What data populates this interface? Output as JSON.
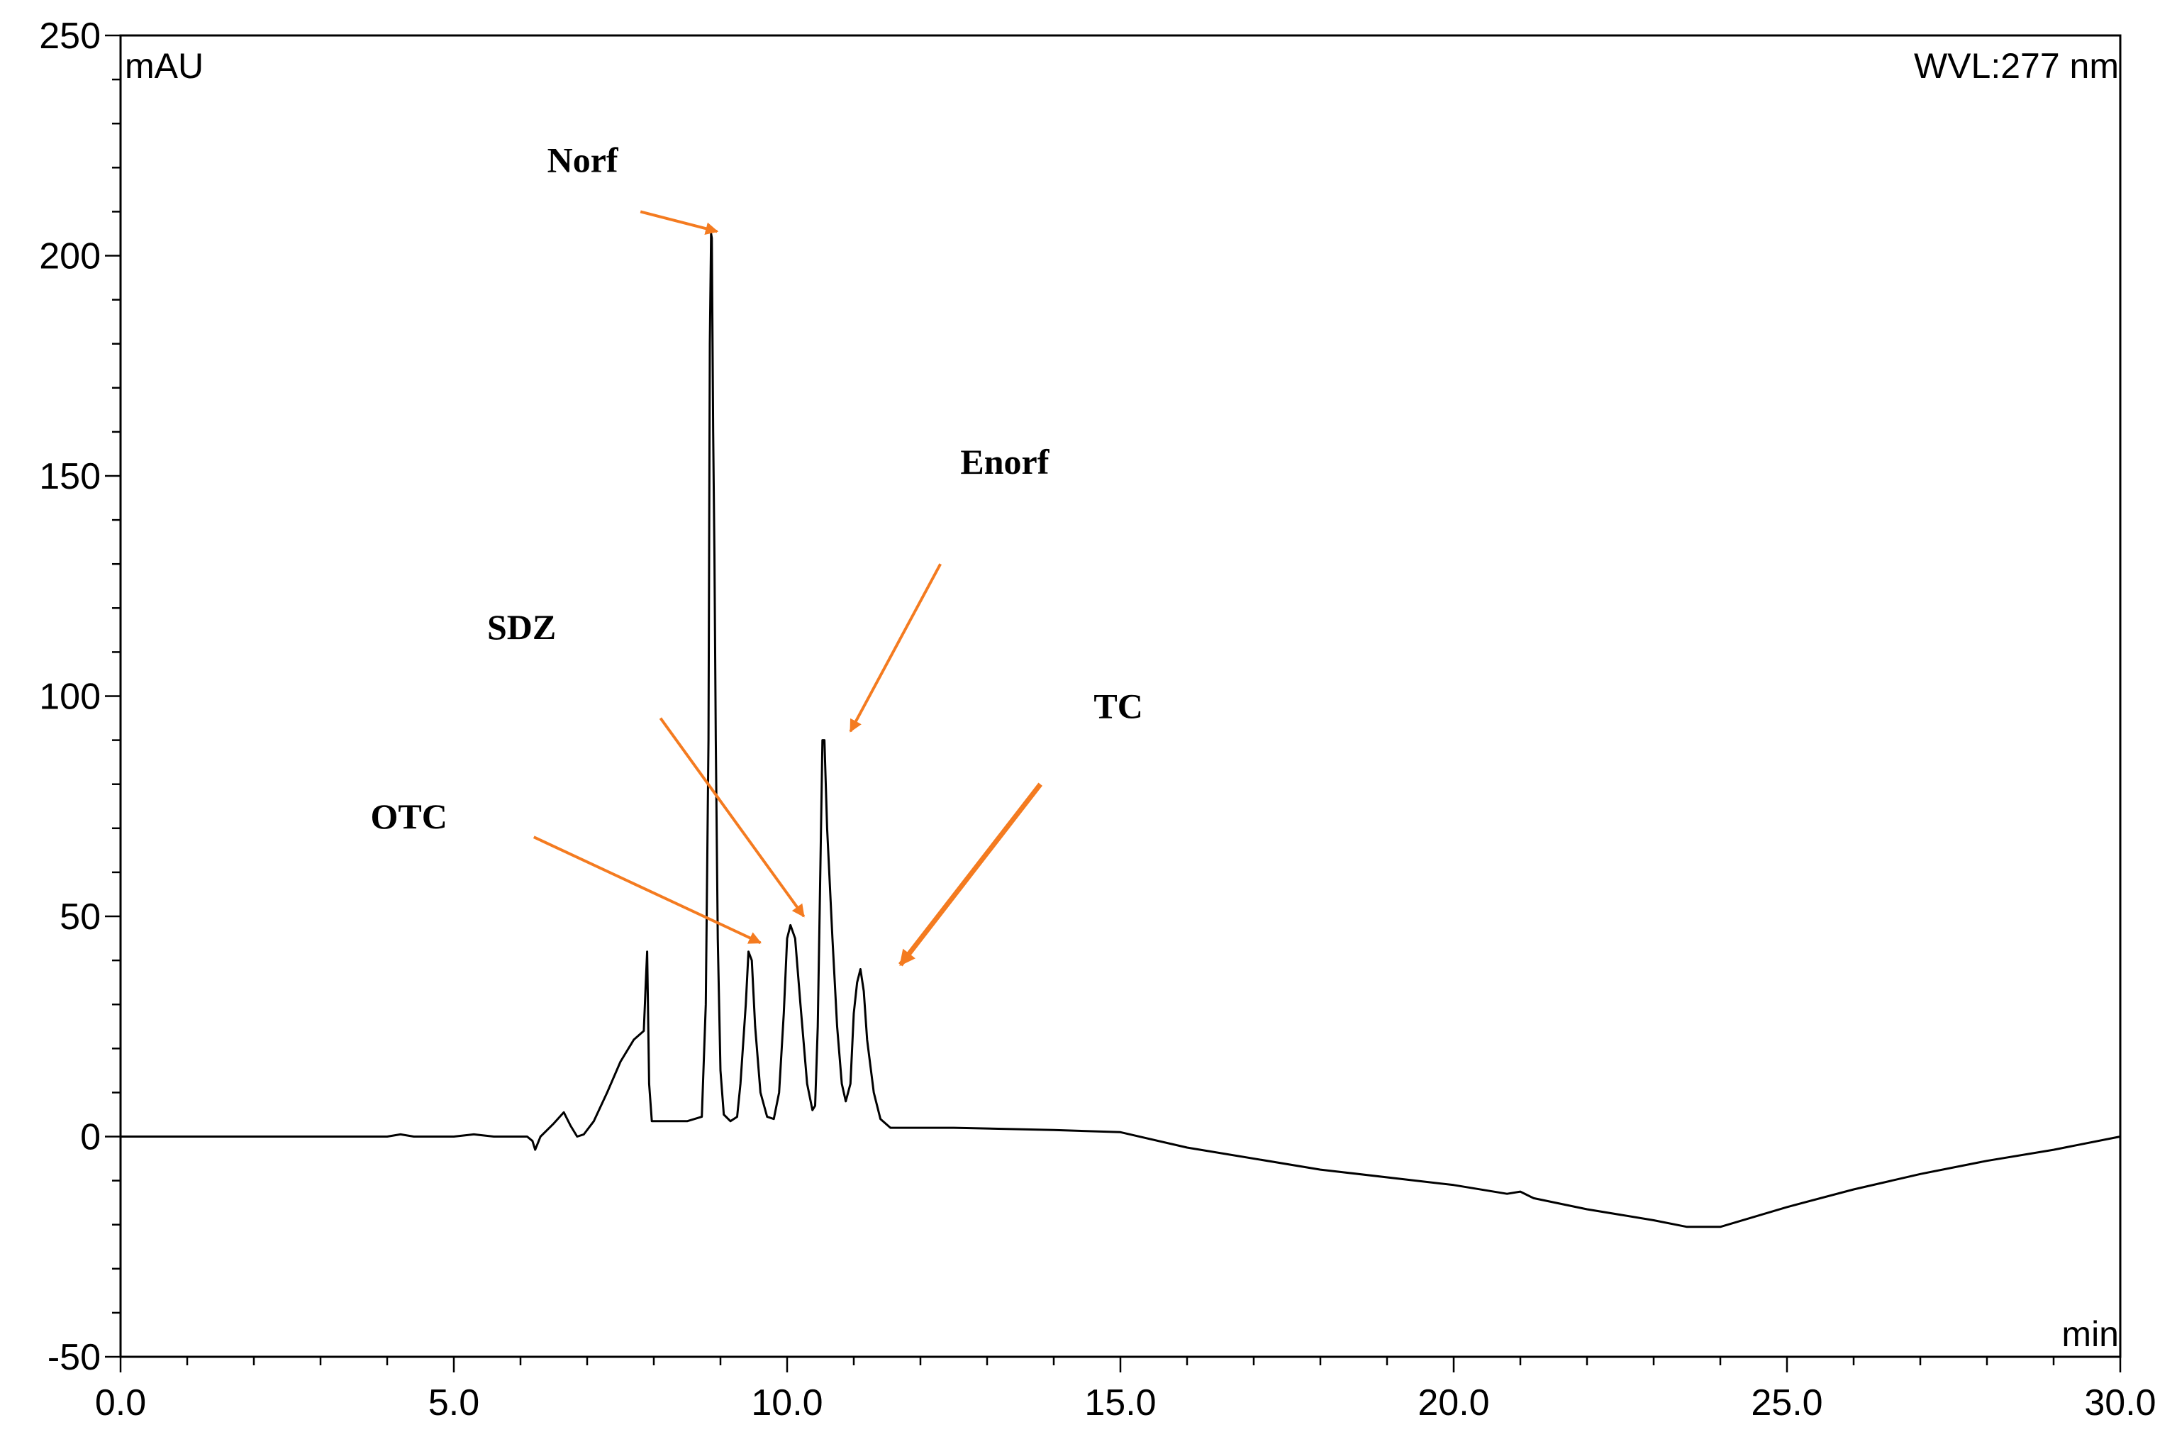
{
  "chart_data": {
    "type": "line",
    "xlabel": "min",
    "ylabel": "mAU",
    "corner_note": "WVL:277 nm",
    "xlim": [
      0,
      30
    ],
    "ylim": [
      -50,
      250
    ],
    "x_ticks": [
      "0.0",
      "5.0",
      "10.0",
      "15.0",
      "20.0",
      "25.0",
      "30.0"
    ],
    "y_ticks": [
      "-50",
      "0",
      "50",
      "100",
      "150",
      "200",
      "250"
    ],
    "grid": false,
    "series": [
      {
        "points": [
          [
            0.0,
            0
          ],
          [
            4.0,
            0
          ],
          [
            4.2,
            0.5
          ],
          [
            4.4,
            0
          ],
          [
            5.0,
            0
          ],
          [
            5.3,
            0.5
          ],
          [
            5.6,
            0
          ],
          [
            6.1,
            0
          ],
          [
            6.18,
            -1
          ],
          [
            6.22,
            -3
          ],
          [
            6.3,
            0
          ],
          [
            6.5,
            3
          ],
          [
            6.65,
            5.5
          ],
          [
            6.75,
            2.5
          ],
          [
            6.85,
            0
          ],
          [
            6.95,
            0.5
          ],
          [
            7.1,
            3.5
          ],
          [
            7.3,
            10
          ],
          [
            7.5,
            17
          ],
          [
            7.7,
            22
          ],
          [
            7.85,
            24
          ],
          [
            7.88,
            35
          ],
          [
            7.9,
            42
          ],
          [
            7.93,
            12
          ],
          [
            7.97,
            3.5
          ],
          [
            8.2,
            3.5
          ],
          [
            8.5,
            3.5
          ],
          [
            8.72,
            4.5
          ],
          [
            8.78,
            30
          ],
          [
            8.82,
            90
          ],
          [
            8.84,
            180
          ],
          [
            8.86,
            205
          ],
          [
            8.87,
            204
          ],
          [
            8.89,
            160
          ],
          [
            8.91,
            132
          ],
          [
            8.93,
            90
          ],
          [
            8.96,
            45
          ],
          [
            9.0,
            15
          ],
          [
            9.05,
            5
          ],
          [
            9.15,
            3.5
          ],
          [
            9.25,
            4.5
          ],
          [
            9.3,
            12
          ],
          [
            9.38,
            30
          ],
          [
            9.42,
            42
          ],
          [
            9.47,
            40
          ],
          [
            9.52,
            25
          ],
          [
            9.6,
            10
          ],
          [
            9.7,
            4.5
          ],
          [
            9.8,
            4
          ],
          [
            9.88,
            10
          ],
          [
            9.95,
            28
          ],
          [
            10.0,
            45
          ],
          [
            10.05,
            48
          ],
          [
            10.12,
            45
          ],
          [
            10.2,
            30
          ],
          [
            10.3,
            12
          ],
          [
            10.38,
            6
          ],
          [
            10.42,
            7
          ],
          [
            10.46,
            25
          ],
          [
            10.5,
            62
          ],
          [
            10.53,
            90
          ],
          [
            10.56,
            90
          ],
          [
            10.6,
            70
          ],
          [
            10.68,
            45
          ],
          [
            10.75,
            25
          ],
          [
            10.82,
            12
          ],
          [
            10.88,
            8
          ],
          [
            10.95,
            12
          ],
          [
            11.0,
            28
          ],
          [
            11.05,
            35
          ],
          [
            11.1,
            38
          ],
          [
            11.15,
            33
          ],
          [
            11.2,
            22
          ],
          [
            11.3,
            10
          ],
          [
            11.4,
            4
          ],
          [
            11.55,
            2
          ],
          [
            12.0,
            2
          ],
          [
            12.5,
            2
          ],
          [
            14.0,
            1.5
          ],
          [
            15.0,
            1
          ],
          [
            16.0,
            -2.5
          ],
          [
            18.0,
            -7.5
          ],
          [
            20.0,
            -11
          ],
          [
            20.8,
            -13
          ],
          [
            21.0,
            -12.5
          ],
          [
            21.2,
            -14
          ],
          [
            22.0,
            -16.5
          ],
          [
            23.0,
            -19
          ],
          [
            23.5,
            -20.5
          ],
          [
            24.0,
            -20.5
          ],
          [
            25.0,
            -16
          ],
          [
            26.0,
            -12
          ],
          [
            27.0,
            -8.5
          ],
          [
            28.0,
            -5.5
          ],
          [
            29.0,
            -3
          ],
          [
            30.0,
            0
          ]
        ]
      }
    ],
    "annotations": [
      {
        "text": "Norf",
        "label_pos": [
          6.4,
          219
        ],
        "arrow_from": [
          7.8,
          210
        ],
        "arrow_to": [
          8.95,
          205.5
        ],
        "arrow_width": 4
      },
      {
        "text": "Enorf",
        "label_pos": [
          12.6,
          150.5
        ],
        "arrow_from": [
          12.3,
          130
        ],
        "arrow_to": [
          10.95,
          92
        ],
        "arrow_width": 4
      },
      {
        "text": "SDZ",
        "label_pos": [
          5.5,
          113
        ],
        "arrow_from": [
          8.1,
          95
        ],
        "arrow_to": [
          10.25,
          50
        ],
        "arrow_width": 4
      },
      {
        "text": "TC",
        "label_pos": [
          14.6,
          95
        ],
        "arrow_from": [
          13.8,
          80
        ],
        "arrow_to": [
          11.7,
          39
        ],
        "arrow_width": 7
      },
      {
        "text": "OTC",
        "label_pos": [
          3.75,
          70
        ],
        "arrow_from": [
          6.2,
          68
        ],
        "arrow_to": [
          9.6,
          44
        ],
        "arrow_width": 4
      }
    ],
    "annotation_color": "#F47B20"
  }
}
